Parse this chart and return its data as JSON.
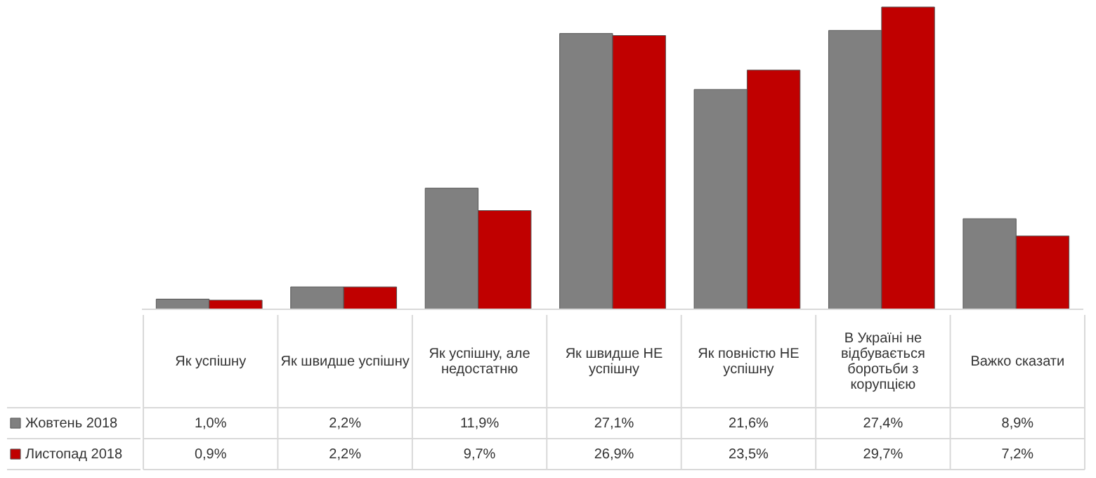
{
  "chart_data": {
    "type": "bar",
    "categories": [
      "Як успішну",
      "Як швидше успішну",
      "Як успішну, але недостатню",
      "Як швидше НЕ успішну",
      "Як повністю НЕ успішну",
      "В Україні не відбувається боротьби з корупцією",
      "Важко сказати"
    ],
    "series": [
      {
        "name": "Жовтень 2018",
        "color": "#808080",
        "values": [
          1.0,
          2.2,
          11.9,
          27.1,
          21.6,
          27.4,
          8.9
        ],
        "value_labels": [
          "1,0%",
          "2,2%",
          "11,9%",
          "27,1%",
          "21,6%",
          "27,4%",
          "8,9%"
        ]
      },
      {
        "name": "Листопад 2018",
        "color": "#c00000",
        "values": [
          0.9,
          2.2,
          9.7,
          26.9,
          23.5,
          29.7,
          7.2
        ],
        "value_labels": [
          "0,9%",
          "2,2%",
          "9,7%",
          "26,9%",
          "23,5%",
          "29,7%",
          "7,2%"
        ]
      }
    ],
    "legend": "bottom left",
    "grid": false
  }
}
